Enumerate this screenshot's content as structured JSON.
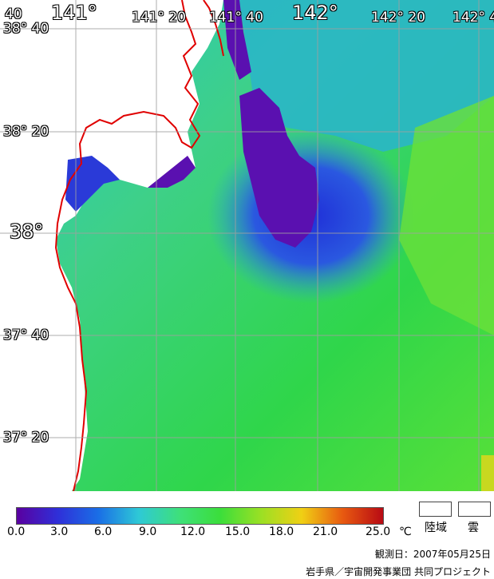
{
  "map": {
    "lon_labels_top": [
      "141°",
      "141° 20",
      "141° 40",
      "142°",
      "142° 20",
      "142° 4"
    ],
    "lat_labels_left": [
      "40",
      "38° 40",
      "38° 20",
      "38°",
      "37° 40",
      "37° 20"
    ]
  },
  "legend": {
    "ticks": [
      "0.0",
      "3.0",
      "6.0",
      "9.0",
      "12.0",
      "15.0",
      "18.0",
      "21.0",
      "25.0"
    ],
    "unit": "℃",
    "land_label": "陸域",
    "cloud_label": "雲",
    "colors": [
      "#5a00a0",
      "#2f2fd8",
      "#1a6ee6",
      "#2ec9d6",
      "#3ee07a",
      "#3bde3b",
      "#9be024",
      "#f0d014",
      "#e85a10",
      "#b80a14"
    ]
  },
  "footer": {
    "observation_date": "観測日：2007年05月25日",
    "credit": "岩手県／宇宙開発事業団 共同プロジェクト"
  }
}
